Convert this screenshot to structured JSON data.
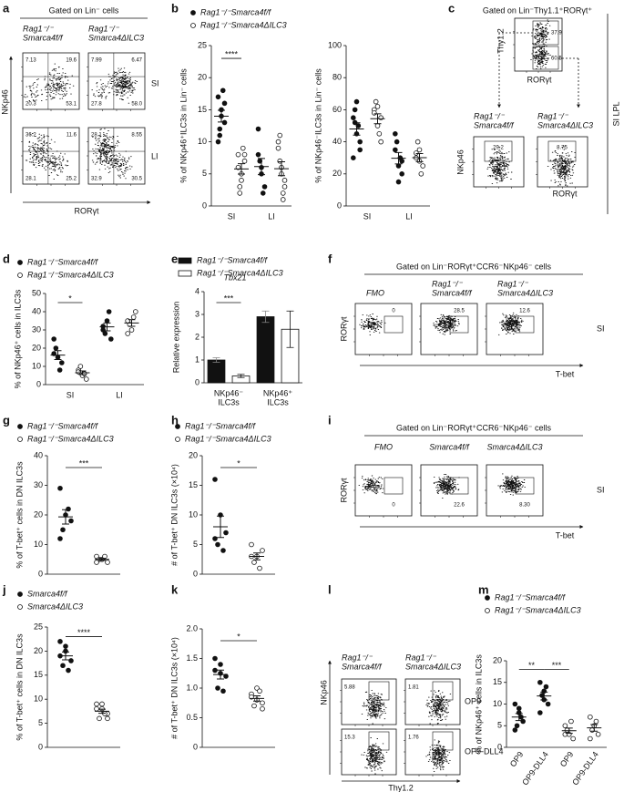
{
  "letters": [
    "a",
    "b",
    "c",
    "d",
    "e",
    "f",
    "g",
    "h",
    "i",
    "j",
    "k",
    "l",
    "m"
  ],
  "flow": {
    "a": {
      "gate": "Gated on Lin⁻ cells",
      "cols": [
        [
          "Rag1⁻/⁻",
          "Smarca4f/f"
        ],
        [
          "Rag1⁻/⁻",
          "Smarca4ΔILC3"
        ]
      ],
      "rows": [
        "SI",
        "LI"
      ],
      "yaxis": "NKp46",
      "xaxis": "RORγt",
      "quadrants": [
        [
          "7.13",
          "19.6",
          "20.3",
          "53.1"
        ],
        [
          "7.99",
          "6.47",
          "27.8",
          "58.0"
        ],
        [
          "36.2",
          "11.6",
          "28.1",
          "25.2"
        ],
        [
          "28.1",
          "8.55",
          "32.9",
          "30.5"
        ]
      ]
    },
    "c": {
      "gate": "Gated on Lin⁻Thy1.1⁺RORγt⁺",
      "top_yaxis": "Thy1.2",
      "top_xaxis": "RORγt",
      "top_gates": [
        "37.9",
        "60.5"
      ],
      "cols": [
        [
          "Rag1⁻/⁻",
          "Smarca4f/f"
        ],
        [
          "Rag1⁻/⁻",
          "Smarca4ΔILC3"
        ]
      ],
      "yaxis": "NKp46",
      "xaxis": "RORγt",
      "values": [
        "29.2",
        "8.75"
      ],
      "side": "SI LPL"
    },
    "f": {
      "gate": "Gated on Lin⁻RORγt⁺CCR6⁻NKp46⁻ cells",
      "cols": [
        [
          "FMO"
        ],
        [
          "Rag1⁻/⁻",
          "Smarca4f/f"
        ],
        [
          "Rag1⁻/⁻",
          "Smarca4ΔILC3"
        ]
      ],
      "values": [
        "0",
        "28.5",
        "12.6"
      ],
      "yaxis": "RORγt",
      "xaxis": "T-bet",
      "side": "SI"
    },
    "i": {
      "gate": "Gated on Lin⁻RORγt⁺CCR6⁻NKp46⁻ cells",
      "cols": [
        "FMO",
        "Smarca4f/f",
        "Smarca4ΔILC3"
      ],
      "values": [
        "0",
        "22.6",
        "8.30"
      ],
      "yaxis": "RORγt",
      "xaxis": "T-bet",
      "side": "SI"
    },
    "l": {
      "cols": [
        [
          "Rag1⁻/⁻",
          "Smarca4f/f"
        ],
        [
          "Rag1⁻/⁻",
          "Smarca4ΔILC3"
        ]
      ],
      "values": [
        "5.88",
        "1.81",
        "15.3",
        "1.76"
      ],
      "rows": [
        "OP9",
        "OP9-DLL4"
      ],
      "yaxis": "NKp46",
      "xaxis": "Thy1.2"
    }
  },
  "chart_data": [
    {
      "type": "dot",
      "ylabel": "% of NKp46⁺ILC3s in Lin⁻ cells",
      "categories": [
        "SI",
        "LI"
      ],
      "ylim": [
        0,
        25
      ],
      "yticks": [
        0,
        5,
        10,
        15,
        20,
        25
      ],
      "series": [
        {
          "name": "Rag1⁻/⁻Smarca4f/f",
          "filled": true,
          "values": [
            [
              17,
              14,
              16,
              12,
              18,
              10,
              15,
              13,
              11
            ],
            [
              12,
              5,
              3,
              7,
              2,
              8,
              6
            ]
          ]
        },
        {
          "name": "Rag1⁻/⁻Smarca4ΔILC3",
          "filled": false,
          "values": [
            [
              8,
              5,
              7,
              3,
              9,
              6,
              4,
              8,
              2
            ],
            [
              10,
              5,
              3,
              7,
              2,
              9,
              6,
              4,
              11,
              1
            ]
          ]
        }
      ],
      "sig": [
        "****"
      ]
    },
    {
      "type": "dot",
      "ylabel": "% of NKp46⁻ILC3s in Lin⁻ cells",
      "categories": [
        "SI",
        "LI"
      ],
      "ylim": [
        0,
        100
      ],
      "yticks": [
        0,
        20,
        40,
        60,
        80,
        100
      ],
      "series": [
        {
          "filled": true,
          "values": [
            [
              55,
              45,
              40,
              60,
              50,
              30,
              65,
              35,
              52
            ],
            [
              35,
              25,
              20,
              40,
              30,
              45,
              15,
              28
            ]
          ]
        },
        {
          "filled": false,
          "values": [
            [
              60,
              50,
              55,
              65,
              45,
              58,
              62,
              40
            ],
            [
              30,
              35,
              25,
              40,
              20,
              33,
              28
            ]
          ]
        }
      ],
      "sig": []
    },
    {
      "type": "dot",
      "ylabel": "% of NKp46⁺ cells in ILC3s",
      "categories": [
        "SI",
        "LI"
      ],
      "ylim": [
        0,
        50
      ],
      "yticks": [
        0,
        10,
        20,
        30,
        40,
        50
      ],
      "series": [
        {
          "name": "Rag1⁻/⁻Smarca4f/f",
          "filled": true,
          "values": [
            [
              25,
              15,
              12,
              20,
              8,
              17
            ],
            [
              30,
              35,
              25,
              28,
              40,
              32
            ]
          ]
        },
        {
          "name": "Rag1⁻/⁻Smarca4ΔILC3",
          "filled": false,
          "values": [
            [
              8,
              5,
              3,
              10,
              6,
              7
            ],
            [
              35,
              30,
              40,
              33,
              37,
              28
            ]
          ]
        }
      ],
      "sig": [
        "*"
      ]
    },
    {
      "type": "bar",
      "title": "Tbx21",
      "ylabel": "Relative expression",
      "categories": [
        [
          "NKp46⁻",
          "ILC3s"
        ],
        [
          "NKp46⁺",
          "ILC3s"
        ]
      ],
      "ylim": [
        0,
        4
      ],
      "yticks": [
        0,
        1,
        2,
        3,
        4
      ],
      "series": [
        {
          "name": "Rag1⁻/⁻Smarca4f/f",
          "filled": true,
          "values": [
            1.0,
            2.9
          ],
          "errors": [
            0.1,
            0.25
          ]
        },
        {
          "name": "Rag1⁻/⁻Smarca4ΔILC3",
          "filled": false,
          "values": [
            0.3,
            2.35
          ],
          "errors": [
            0.07,
            0.8
          ]
        }
      ],
      "sig": [
        "***"
      ]
    },
    {
      "type": "dot",
      "ylabel": "% of T-bet⁺ cells in DN ILC3s",
      "ylim": [
        0,
        40
      ],
      "yticks": [
        0,
        10,
        20,
        30,
        40
      ],
      "series": [
        {
          "name": "Rag1⁻/⁻Smarca4f/f",
          "filled": true,
          "values": [
            29,
            20,
            18,
            15,
            22,
            12
          ]
        },
        {
          "name": "Rag1⁻/⁻Smarca4ΔILC3",
          "filled": false,
          "values": [
            6,
            5,
            4,
            5,
            6,
            4
          ]
        }
      ],
      "sig": [
        "***"
      ]
    },
    {
      "type": "dot",
      "ylabel": "# of T-bet⁺ DN ILC3s (×10⁴)",
      "ylim": [
        0,
        20
      ],
      "yticks": [
        0,
        5,
        10,
        15,
        20
      ],
      "series": [
        {
          "name": "Rag1⁻/⁻Smarca4f/f",
          "filled": true,
          "values": [
            16,
            10,
            7,
            5,
            4,
            6
          ]
        },
        {
          "name": "Rag1⁻/⁻Smarca4ΔILC3",
          "filled": false,
          "values": [
            5,
            3,
            4,
            2,
            1,
            3
          ]
        }
      ],
      "sig": [
        "*"
      ]
    },
    {
      "type": "dot",
      "ylabel": "% of T-bet⁺ cells in DN ILC3s",
      "ylim": [
        0,
        25
      ],
      "yticks": [
        0,
        5,
        10,
        15,
        20,
        25
      ],
      "series": [
        {
          "name": "Smarca4f/f",
          "filled": true,
          "values": [
            22,
            20,
            18,
            17,
            16,
            19,
            21
          ]
        },
        {
          "name": "Smarca4ΔILC3",
          "filled": false,
          "values": [
            9,
            8,
            7,
            6,
            7,
            8,
            9,
            6
          ]
        }
      ],
      "sig": [
        "****"
      ]
    },
    {
      "type": "dot",
      "ylabel": "# of T-bet⁺ DN ILC3s (×10⁴)",
      "ylim": [
        0,
        2
      ],
      "yticks": [
        0,
        0.5,
        {
          "value": 1,
          "label": "1.0"
        },
        1.5,
        {
          "value": 2,
          "label": "2.0"
        }
      ],
      "series": [
        {
          "filled": true,
          "values": [
            1.5,
            1.4,
            1.2,
            1.0,
            0.95,
            1.3,
            1.25
          ]
        },
        {
          "filled": false,
          "values": [
            0.9,
            1.0,
            0.75,
            0.7,
            0.95,
            0.85,
            0.8,
            0.65
          ]
        }
      ],
      "sig": [
        "*"
      ]
    },
    {
      "type": "dot",
      "ylabel": "% of NKp46⁺ cells in ILC3s",
      "categories": [
        "OP9",
        "OP9-DLL4",
        "OP9",
        "OP9-DLL4"
      ],
      "ylim": [
        0,
        20
      ],
      "yticks": [
        0,
        5,
        10,
        15,
        20
      ],
      "series": [
        {
          "name": "Rag1⁻/⁻Smarca4f/f",
          "filled": true,
          "values": [
            [
              10,
              8,
              6,
              5,
              7,
              4,
              9
            ],
            [
              15,
              13,
              10,
              12,
              14,
              8,
              11
            ],
            null,
            null
          ]
        },
        {
          "name": "Rag1⁻/⁻Smarca4ΔILC3",
          "filled": false,
          "values": [
            null,
            null,
            [
              5,
              3,
              2,
              4,
              6,
              3
            ],
            [
              7,
              5,
              3,
              4,
              6,
              2
            ]
          ]
        }
      ],
      "sig": [
        "**",
        "***"
      ]
    }
  ]
}
